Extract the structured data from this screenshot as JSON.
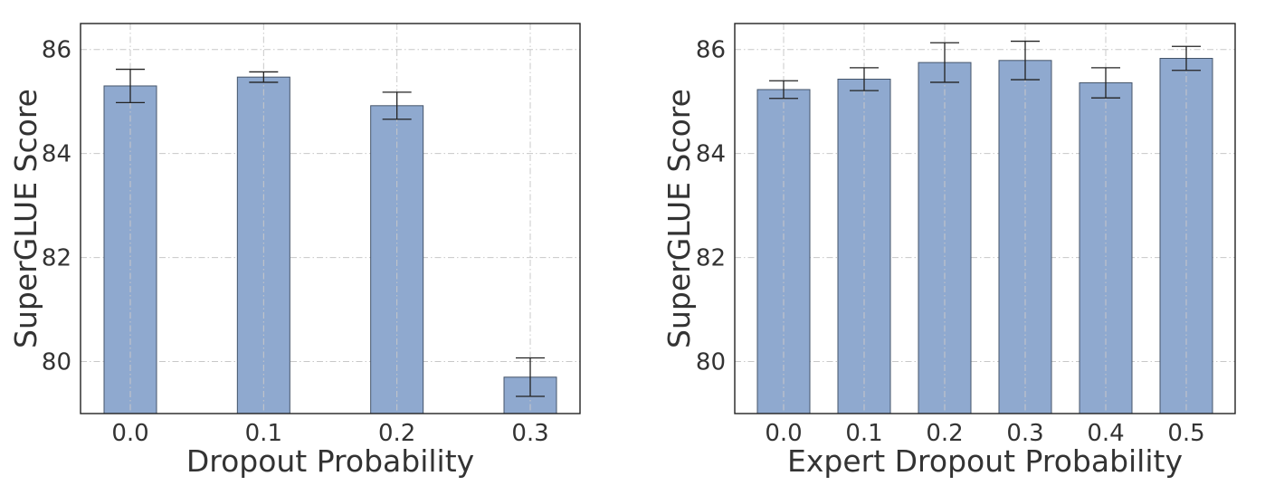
{
  "chart_data": [
    {
      "type": "bar",
      "xlabel": "Dropout Probability",
      "ylabel": "SuperGLUE Score",
      "categories": [
        "0.0",
        "0.1",
        "0.2",
        "0.3"
      ],
      "values": [
        85.3,
        85.47,
        84.92,
        79.7
      ],
      "error": [
        0.32,
        0.1,
        0.26,
        0.37
      ],
      "ylim": [
        79,
        86.5
      ],
      "yticks": [
        "80",
        "82",
        "84",
        "86"
      ],
      "grid": true,
      "bar_color": "#8fa9cf"
    },
    {
      "type": "bar",
      "xlabel": "Expert Dropout Probability",
      "ylabel": "SuperGLUE Score",
      "categories": [
        "0.0",
        "0.1",
        "0.2",
        "0.3",
        "0.4",
        "0.5"
      ],
      "values": [
        85.23,
        85.43,
        85.75,
        85.79,
        85.36,
        85.83
      ],
      "error": [
        0.17,
        0.22,
        0.38,
        0.37,
        0.29,
        0.23
      ],
      "ylim": [
        79,
        86.5
      ],
      "yticks": [
        "80",
        "82",
        "84",
        "86"
      ],
      "grid": true,
      "bar_color": "#8fa9cf"
    }
  ]
}
